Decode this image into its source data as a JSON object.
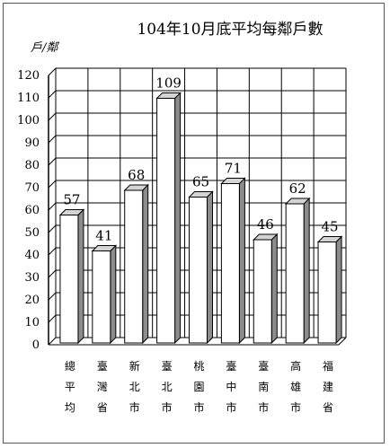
{
  "chart_data": {
    "type": "bar",
    "title": "104年10月底平均每鄰戶數",
    "ylabel": "戶/鄰",
    "xlabel": "",
    "categories": [
      "總平均",
      "臺灣省",
      "新北市",
      "臺北市",
      "桃園市",
      "臺中市",
      "臺南市",
      "高雄市",
      "福建省"
    ],
    "values": [
      57,
      41,
      68,
      109,
      65,
      71,
      46,
      62,
      45
    ],
    "ylim": [
      0,
      120
    ],
    "ytick_step": 10,
    "grid": true,
    "legend": "none",
    "style": "3d-column",
    "colors": {
      "bar_front": "#ffffff",
      "bar_side": "#8c8c8c",
      "bar_top": "#d4d4d4",
      "grid": "#000000",
      "text": "#000000"
    }
  }
}
